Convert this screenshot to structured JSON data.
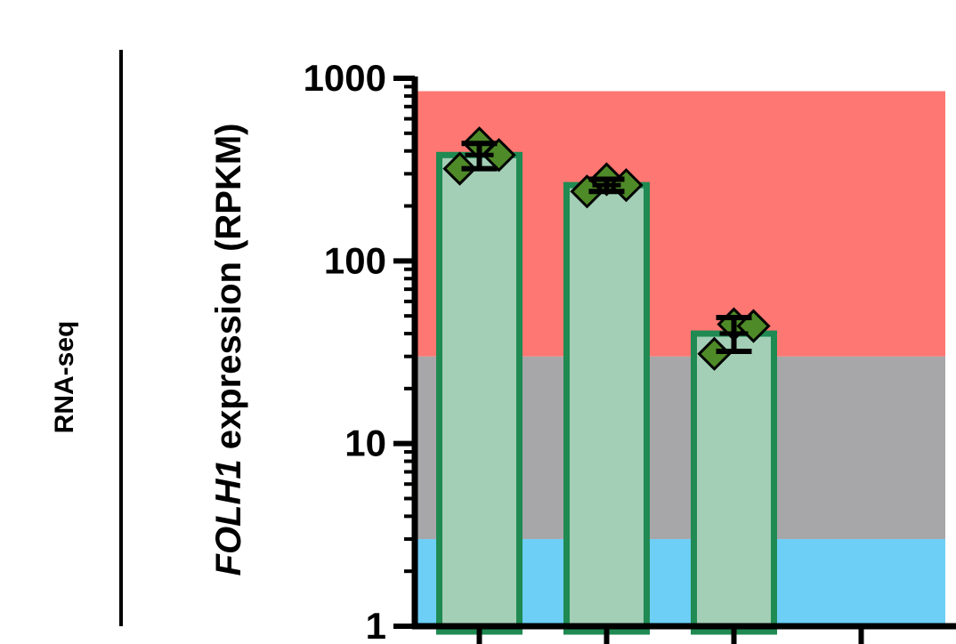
{
  "side_label": "RNA-seq",
  "chart_data": {
    "type": "bar",
    "ylabel_italic": "FOLH1",
    "ylabel_rest": " expression (RPKM)",
    "yscale": "log",
    "ylim": [
      1,
      1000
    ],
    "yticks": [
      1,
      10,
      100,
      1000
    ],
    "ytick_labels": [
      "1",
      "10",
      "100",
      "1000"
    ],
    "bands": [
      {
        "from": 1,
        "to": 3,
        "color": "#6ecff6"
      },
      {
        "from": 3,
        "to": 30,
        "color": "#a7a7a9"
      },
      {
        "from": 30,
        "to": 850,
        "color": "#fe7772"
      }
    ],
    "categories": [
      "",
      "",
      ""
    ],
    "bar_count_slots": 4,
    "values": [
      380,
      260,
      40
    ],
    "error_low": [
      320,
      240,
      32
    ],
    "error_high": [
      440,
      280,
      49
    ],
    "points": [
      [
        320,
        440,
        380
      ],
      [
        240,
        280,
        260
      ],
      [
        31,
        45,
        44
      ]
    ],
    "colors": {
      "bar_fill": "#a3cfb6",
      "bar_edge": "#1f8a52",
      "point_fill": "#4f8a28",
      "axis": "#000000",
      "divider": "#000000"
    },
    "grid": false,
    "legend": "none"
  }
}
